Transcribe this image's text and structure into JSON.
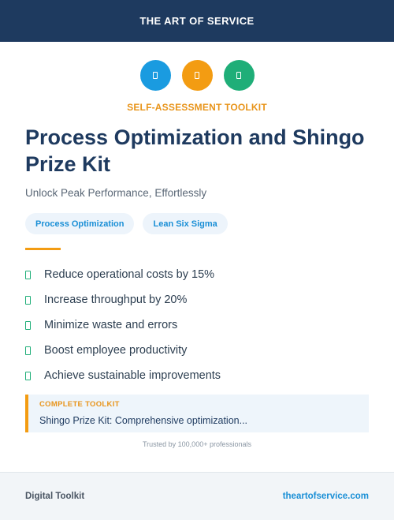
{
  "header": {
    "brand": "THE ART OF SERVICE"
  },
  "icons": [
    {
      "name": "document-icon",
      "color": "#1a9be0"
    },
    {
      "name": "document-icon",
      "color": "#f39c12"
    },
    {
      "name": "document-icon",
      "color": "#1fae78"
    }
  ],
  "eyebrow": "SELF-ASSESSMENT TOOLKIT",
  "title": "Process Optimization and Shingo Prize Kit",
  "subtitle": "Unlock Peak Performance, Effortlessly",
  "tags": [
    "Process Optimization",
    "Lean Six Sigma"
  ],
  "benefits": [
    "Reduce operational costs by 15%",
    "Increase throughput by 20%",
    "Minimize waste and errors",
    "Boost employee productivity",
    "Achieve sustainable improvements"
  ],
  "callout": {
    "label": "COMPLETE TOOLKIT",
    "text": "Shingo Prize Kit: Comprehensive optimization..."
  },
  "trusted": "Trusted by 100,000+ professionals",
  "footer": {
    "left": "Digital Toolkit",
    "right": "theartofservice.com"
  },
  "colors": {
    "navy": "#1e3a5f",
    "accent_orange": "#f39c12",
    "accent_blue": "#1a9be0",
    "accent_green": "#1fae78"
  }
}
